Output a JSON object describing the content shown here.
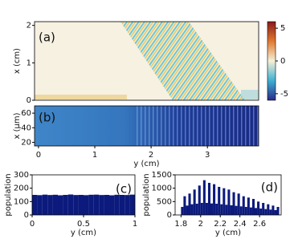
{
  "chart_data": [
    {
      "type": "heatmap",
      "annotation": "(a)",
      "ylabel": "x (cm)",
      "xlim": [
        -0.07,
        3.91
      ],
      "ylim": [
        0,
        2.1
      ],
      "yticks": [
        0,
        1,
        2
      ],
      "colorbar": {
        "lim": [
          -6,
          6
        ],
        "ticks": [
          -5,
          0,
          5
        ]
      }
    },
    {
      "type": "heatmap",
      "annotation": "(b)",
      "ylabel": "x (μm)",
      "xlabel": "y (cm)",
      "xlim": [
        -0.07,
        3.91
      ],
      "ylim": [
        15,
        70
      ],
      "yticks": [
        20,
        40,
        60
      ],
      "xticks": [
        0,
        1,
        2,
        3
      ]
    },
    {
      "type": "histogram",
      "annotation": "(c)",
      "ylabel": "population",
      "xlabel": "y (cm)",
      "color": "#0b1a7c",
      "xlim": [
        0,
        1
      ],
      "ylim": [
        0,
        300
      ],
      "xticks": [
        0,
        0.5,
        1
      ],
      "yticks": [
        0,
        100,
        200,
        300
      ],
      "bins": [
        0,
        0.05,
        0.1,
        0.15,
        0.2,
        0.25,
        0.3,
        0.35,
        0.4,
        0.45,
        0.5,
        0.55,
        0.6,
        0.65,
        0.7,
        0.75,
        0.8,
        0.85,
        0.9,
        0.95,
        1
      ],
      "values": [
        150,
        148,
        152,
        149,
        151,
        147,
        150,
        153,
        149,
        150,
        148,
        151,
        152,
        149,
        150,
        147,
        151,
        150,
        149,
        152
      ]
    },
    {
      "type": "histogram",
      "annotation": "(d)",
      "ylabel": "population",
      "xlabel": "y (cm)",
      "color": "#0b1a7c",
      "xlim": [
        1.74,
        2.82
      ],
      "ylim": [
        0,
        1500
      ],
      "xticks": [
        1.8,
        2.0,
        2.2,
        2.4,
        2.6
      ],
      "yticks": [
        0,
        500,
        1000,
        1500
      ],
      "bins": [
        1.8,
        1.825,
        1.85,
        1.875,
        1.9,
        1.925,
        1.95,
        1.975,
        2.0,
        2.025,
        2.05,
        2.075,
        2.1,
        2.125,
        2.15,
        2.175,
        2.2,
        2.225,
        2.25,
        2.275,
        2.3,
        2.325,
        2.35,
        2.375,
        2.4,
        2.425,
        2.45,
        2.475,
        2.5,
        2.525,
        2.55,
        2.575,
        2.6,
        2.625,
        2.65,
        2.675,
        2.7,
        2.725,
        2.75,
        2.775,
        2.8
      ],
      "values": [
        300,
        700,
        350,
        800,
        400,
        950,
        420,
        1100,
        450,
        1300,
        450,
        1200,
        430,
        1150,
        420,
        1050,
        400,
        1000,
        380,
        950,
        360,
        850,
        340,
        800,
        320,
        700,
        300,
        650,
        280,
        600,
        260,
        500,
        240,
        450,
        220,
        400,
        200,
        350,
        180,
        300
      ]
    }
  ]
}
